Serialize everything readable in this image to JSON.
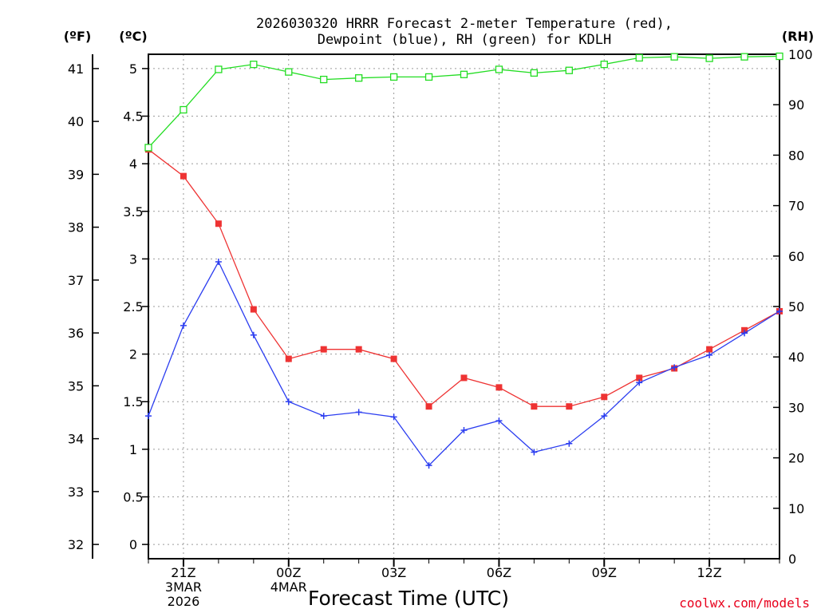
{
  "chart_data": {
    "type": "line",
    "title_line1": "2026030320 HRRR Forecast 2-meter Temperature (red),",
    "title_line2": "Dewpoint (blue), RH (green) for KDLH",
    "xlabel": "Forecast Time (UTC)",
    "credit": "coolwx.com/models",
    "units": {
      "fahrenheit": "(ºF)",
      "celsius": "(ºC)",
      "rh": "(RH)"
    },
    "x": [
      20,
      21,
      22,
      23,
      24,
      25,
      26,
      27,
      28,
      29,
      30,
      31,
      32,
      33,
      34,
      35,
      36,
      37,
      38
    ],
    "x_ticks": [
      {
        "x": 21,
        "label": "21Z",
        "sub1": "3MAR",
        "sub2": "2026"
      },
      {
        "x": 24,
        "label": "00Z",
        "sub1": "4MAR",
        "sub2": ""
      },
      {
        "x": 27,
        "label": "03Z",
        "sub1": "",
        "sub2": ""
      },
      {
        "x": 30,
        "label": "06Z",
        "sub1": "",
        "sub2": ""
      },
      {
        "x": 33,
        "label": "09Z",
        "sub1": "",
        "sub2": ""
      },
      {
        "x": 36,
        "label": "12Z",
        "sub1": "",
        "sub2": ""
      }
    ],
    "xlim": [
      20,
      38
    ],
    "celsius_axis": {
      "ylim": [
        -0.15,
        5.15
      ],
      "ticks": [
        0,
        0.5,
        1,
        1.5,
        2,
        2.5,
        3,
        3.5,
        4,
        4.5,
        5
      ],
      "tick_labels": [
        "0",
        "0.5",
        "1",
        "1.5",
        "2",
        "2.5",
        "3",
        "3.5",
        "4",
        "4.5",
        "5"
      ]
    },
    "fahrenheit_axis": {
      "ticks": [
        32,
        33,
        34,
        35,
        36,
        37,
        38,
        39,
        40,
        41
      ],
      "tick_labels": [
        "32",
        "33",
        "34",
        "35",
        "36",
        "37",
        "38",
        "39",
        "40",
        "41"
      ]
    },
    "rh_axis": {
      "ylim": [
        0,
        100
      ],
      "ticks": [
        0,
        10,
        20,
        30,
        40,
        50,
        60,
        70,
        80,
        90,
        100
      ],
      "tick_labels": [
        "0",
        "10",
        "20",
        "30",
        "40",
        "50",
        "60",
        "70",
        "80",
        "90",
        "100"
      ]
    },
    "series": [
      {
        "name": "Temperature",
        "axis": "celsius",
        "color": "#ee3333",
        "marker": "filled-square",
        "values": [
          4.15,
          3.87,
          3.37,
          2.47,
          1.95,
          2.05,
          2.05,
          1.95,
          1.45,
          1.75,
          1.65,
          1.45,
          1.45,
          1.55,
          1.75,
          1.85,
          2.05,
          2.25,
          2.45
        ]
      },
      {
        "name": "Dewpoint",
        "axis": "celsius",
        "color": "#2b3df0",
        "marker": "plus",
        "values": [
          1.35,
          2.3,
          2.97,
          2.2,
          1.5,
          1.35,
          1.39,
          1.34,
          0.83,
          1.2,
          1.3,
          0.97,
          1.06,
          1.35,
          1.7,
          1.86,
          1.99,
          2.22,
          2.45
        ]
      },
      {
        "name": "RH",
        "axis": "rh",
        "color": "#22dd22",
        "marker": "open-square",
        "values": [
          81.5,
          89,
          97,
          98,
          96.5,
          95,
          95.3,
          95.5,
          95.5,
          96,
          97,
          96.3,
          96.8,
          98,
          99.3,
          99.5,
          99.2,
          99.5,
          99.6
        ]
      }
    ]
  }
}
